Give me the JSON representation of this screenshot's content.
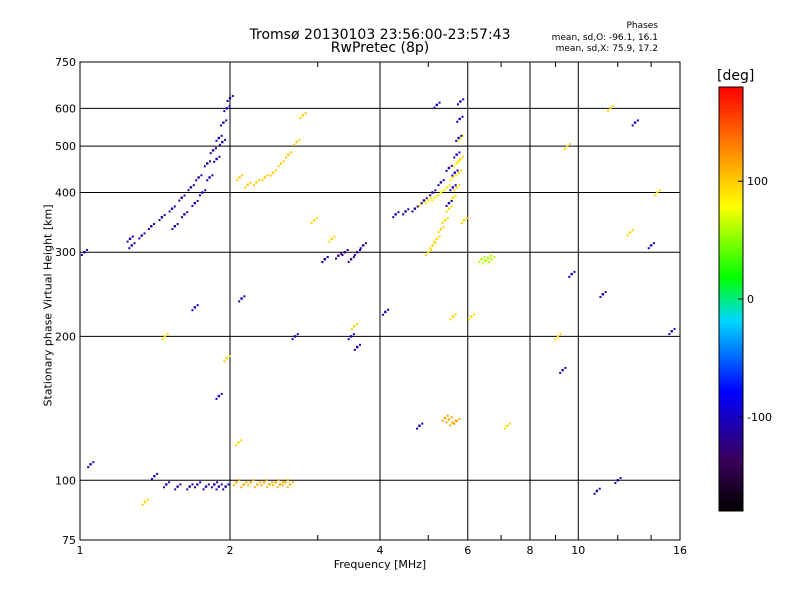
{
  "title": {
    "line1": "Tromsø 20130103 23:56:00-23:57:43",
    "line2": "RwPretec (8p)"
  },
  "phases_box": {
    "title": "Phases",
    "o_line": "mean, sd,O: -96.1, 16.1",
    "x_line": "mean, sd,X:  75.9, 17.2"
  },
  "colorbar": {
    "unit": "[deg]",
    "ticks": [
      "100",
      "0",
      "-100"
    ],
    "tick_values": [
      100,
      0,
      -100
    ],
    "range": [
      -180,
      180
    ]
  },
  "chart_data": {
    "type": "scatter",
    "title": "Tromsø 20130103 23:56:00-23:57:43",
    "subtitle": "RwPretec (8p)",
    "xlabel": "Frequency [MHz]",
    "ylabel": "Stationary phase Virtual Height [km]",
    "xscale": "log",
    "yscale": "log",
    "xlim": [
      1,
      16
    ],
    "ylim": [
      75,
      750
    ],
    "xticks": [
      1,
      2,
      4,
      6,
      8,
      10,
      16
    ],
    "xtick_labels": [
      "1",
      "2",
      "4",
      "6",
      "8",
      "10",
      "16"
    ],
    "yticks": [
      75,
      100,
      200,
      300,
      400,
      500,
      600,
      750
    ],
    "ytick_labels": [
      "75",
      "100",
      "200",
      "300",
      "400",
      "500",
      "600",
      "750"
    ],
    "xgrid": [
      2,
      4,
      6,
      8,
      10
    ],
    "ygrid": [
      100,
      200,
      300,
      400,
      500,
      600
    ],
    "color_variable": "phase [deg]",
    "series": [
      {
        "x": [
          1.49,
          1.57,
          1.66,
          1.72,
          1.79,
          1.86,
          1.9,
          1.96
        ],
        "y": [
          98,
          97,
          97,
          98,
          97,
          98,
          97,
          97
        ],
        "phase": -110
      },
      {
        "x": [
          1.27,
          1.33,
          1.39,
          1.46,
          1.53,
          1.6,
          1.67,
          1.73,
          1.8,
          1.85,
          1.9,
          1.94,
          1.97,
          2.0
        ],
        "y": [
          310,
          325,
          340,
          355,
          370,
          390,
          410,
          430,
          460,
          490,
          520,
          560,
          600,
          630
        ],
        "phase": -110
      },
      {
        "x": [
          1.55,
          1.62,
          1.7,
          1.76,
          1.82,
          1.88,
          1.93
        ],
        "y": [
          340,
          360,
          380,
          400,
          430,
          470,
          510
        ],
        "phase": -105
      },
      {
        "x": [
          2.06,
          2.13,
          2.2,
          2.27,
          2.34,
          2.4,
          2.47,
          2.52,
          2.58,
          2.64
        ],
        "y": [
          99,
          98,
          99,
          98,
          99,
          98,
          99,
          98,
          99,
          98
        ],
        "phase": 110
      },
      {
        "x": [
          2.09,
          2.17,
          2.26,
          2.35,
          2.44,
          2.53,
          2.62,
          2.72,
          2.8
        ],
        "y": [
          430,
          415,
          420,
          430,
          440,
          460,
          480,
          510,
          580
        ],
        "phase": 100
      },
      {
        "x": [
          5.0,
          5.1,
          5.2,
          5.3,
          5.4,
          5.5,
          5.6,
          5.7,
          5.75,
          5.8
        ],
        "y": [
          300,
          310,
          320,
          335,
          350,
          370,
          390,
          410,
          440,
          470
        ],
        "phase": 95
      },
      {
        "x": [
          4.85,
          5.0,
          5.15,
          5.3,
          5.45,
          5.6,
          5.7,
          5.8
        ],
        "y": [
          380,
          385,
          390,
          400,
          410,
          430,
          460,
          520
        ],
        "phase": 85
      },
      {
        "x": [
          5.5,
          5.6,
          5.65,
          5.7,
          5.75,
          5.78,
          5.8
        ],
        "y": [
          380,
          410,
          440,
          480,
          520,
          570,
          620
        ],
        "phase": -100
      },
      {
        "x": [
          4.3,
          4.5,
          4.7,
          4.9,
          5.1,
          5.3,
          5.5
        ],
        "y": [
          360,
          365,
          370,
          385,
          400,
          420,
          450
        ],
        "phase": -115
      },
      {
        "x": [
          3.1,
          3.3,
          3.4,
          3.5,
          3.6,
          3.7
        ],
        "y": [
          290,
          295,
          300,
          290,
          300,
          310
        ],
        "phase": -120
      },
      {
        "x": [
          6.4,
          6.5,
          6.6,
          6.7
        ],
        "y": [
          290,
          288,
          292,
          290
        ],
        "phase": 60
      },
      {
        "x": [
          5.4,
          5.5,
          5.6,
          5.7
        ],
        "y": [
          135,
          134,
          132,
          133
        ],
        "phase": 115
      },
      {
        "x": [
          1.02,
          1.05,
          1.26,
          1.41,
          1.7,
          1.9,
          2.11,
          3.5,
          3.6,
          4.8,
          5.2,
          9.3,
          9.7,
          10.9,
          11.2,
          12.0,
          13.0,
          14.0,
          15.4,
          2.7,
          3.1,
          4.1
        ],
        "y": [
          300,
          108,
          320,
          102,
          230,
          150,
          240,
          200,
          190,
          130,
          610,
          170,
          270,
          95,
          245,
          100,
          560,
          310,
          205,
          200,
          290,
          225
        ],
        "phase": -105
      },
      {
        "x": [
          2.95,
          3.2,
          3.55,
          5.6,
          5.9,
          6.1,
          7.2,
          9.1,
          9.5,
          11.6,
          12.7,
          14.4,
          1.35,
          1.48,
          1.97,
          2.08
        ],
        "y": [
          350,
          320,
          210,
          220,
          350,
          220,
          130,
          200,
          500,
          600,
          330,
          400,
          90,
          200,
          180,
          120
        ],
        "phase": 95
      }
    ]
  }
}
